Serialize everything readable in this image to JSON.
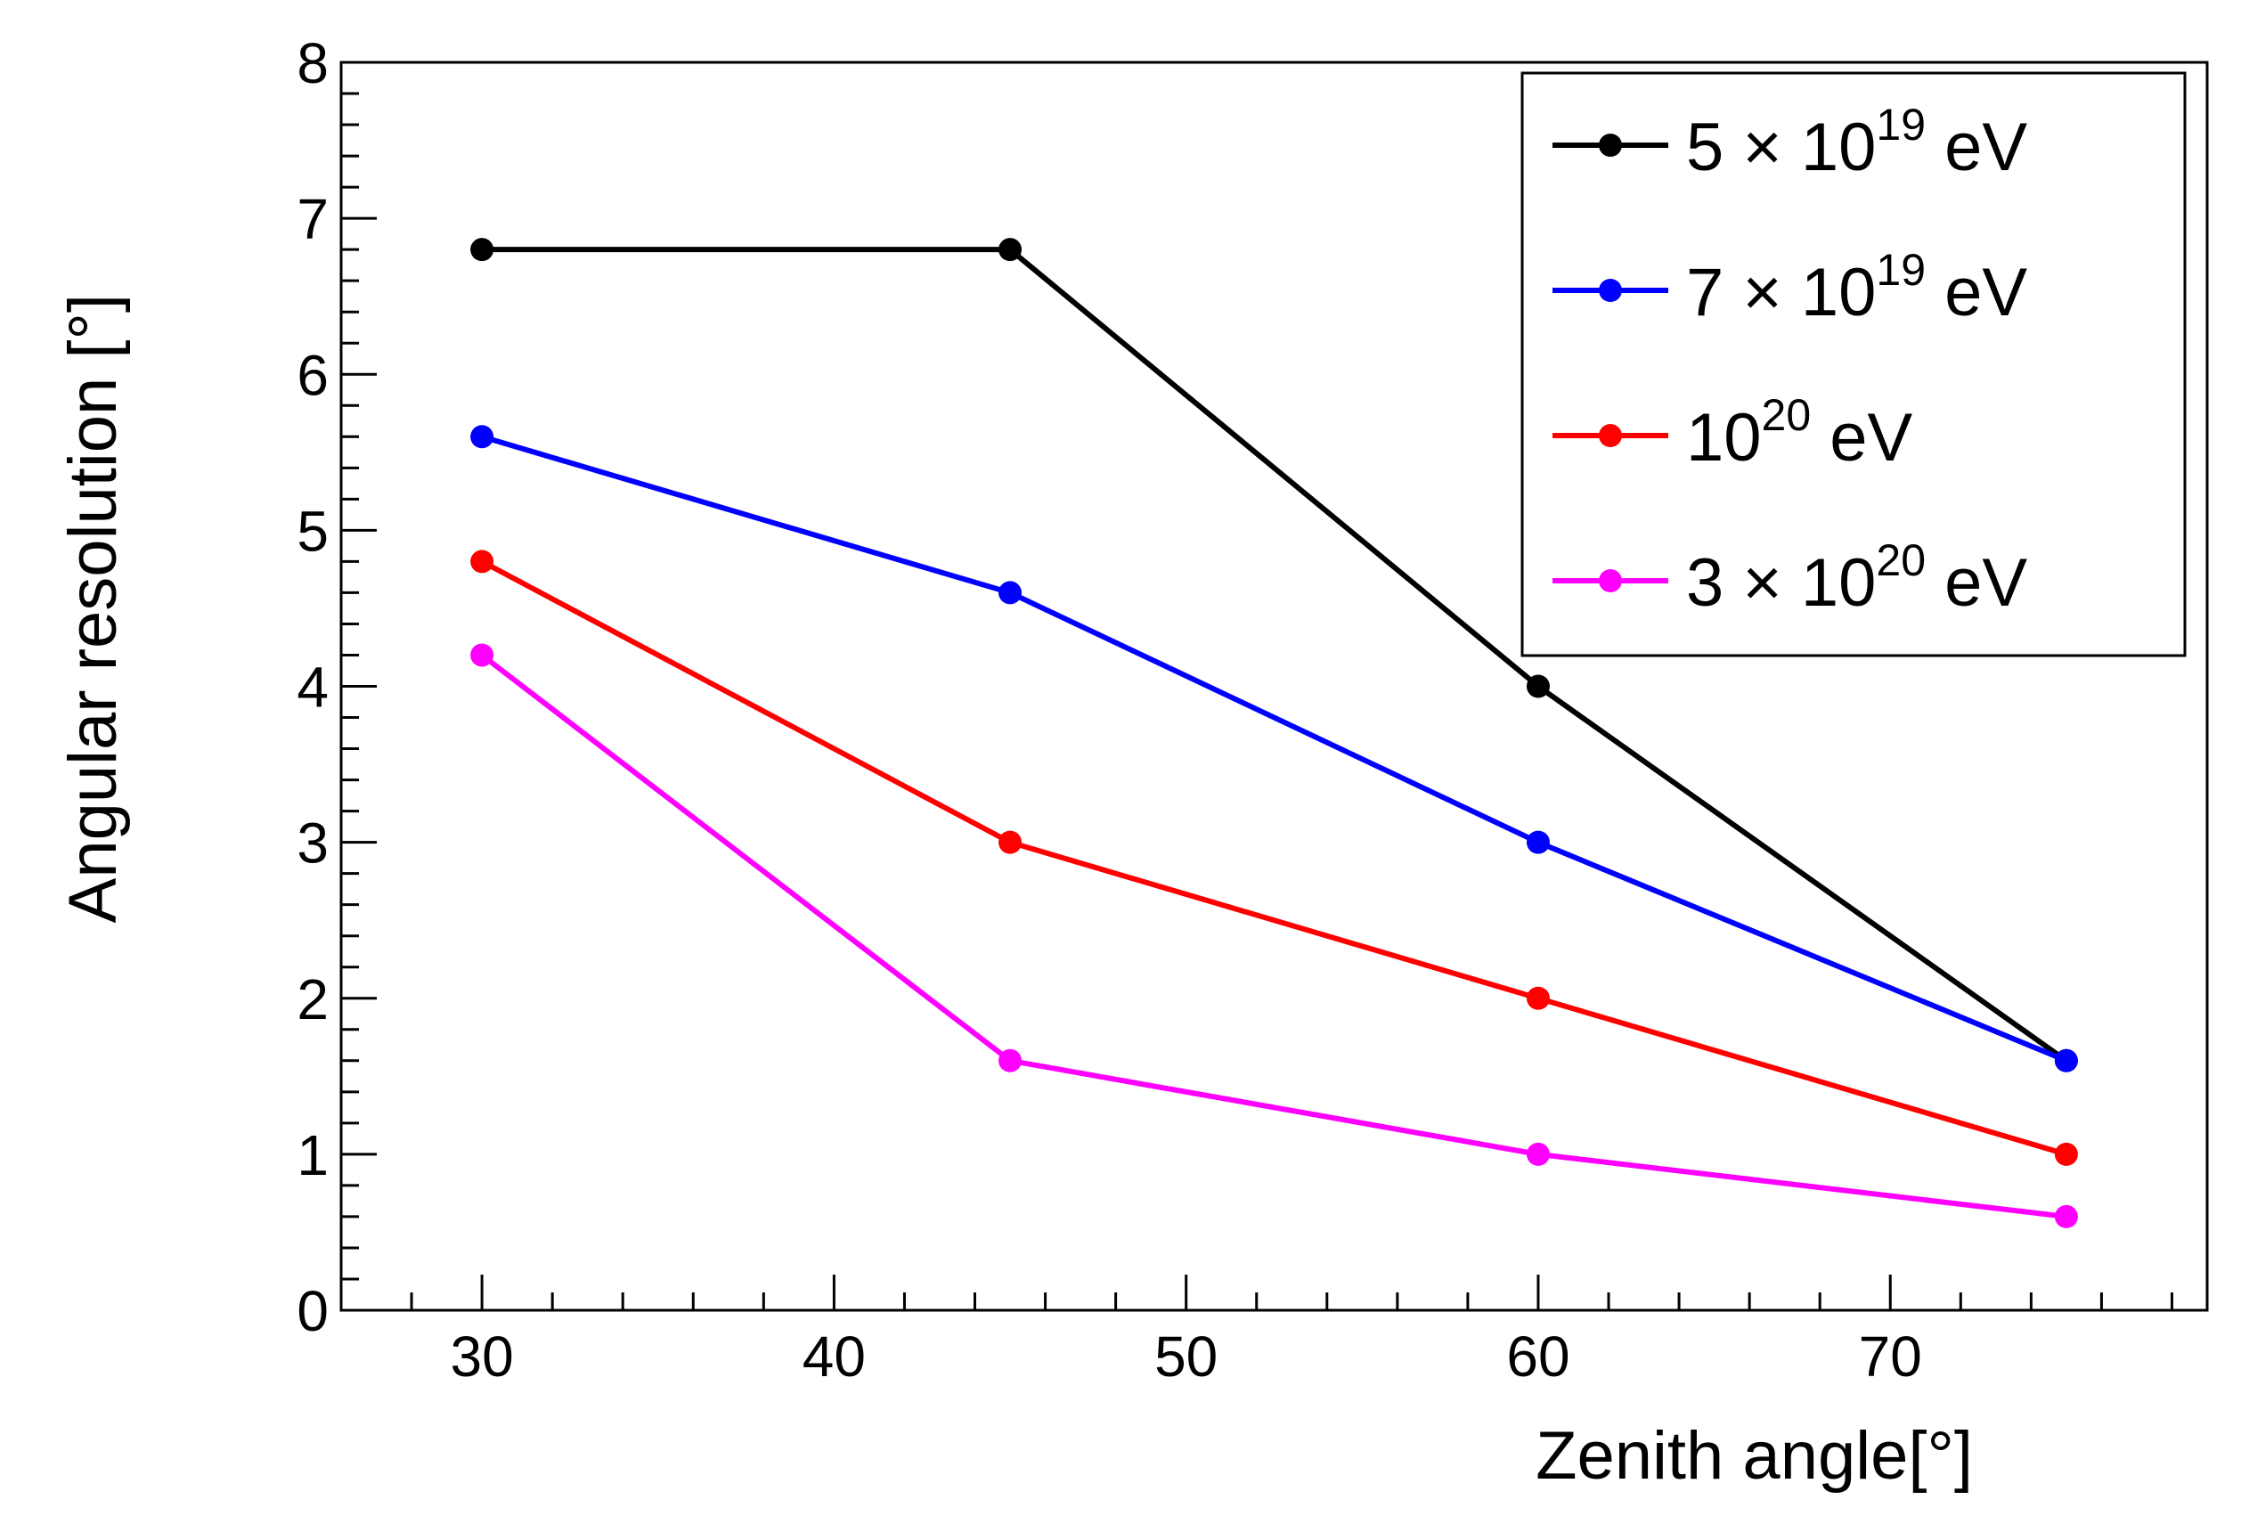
{
  "chart_data": {
    "type": "line",
    "title": "",
    "xlabel": "Zenith angle[°]",
    "ylabel": "Angular resolution [°]",
    "xlim": [
      26,
      79
    ],
    "ylim": [
      0,
      8
    ],
    "x_ticks": [
      30,
      40,
      50,
      60,
      70
    ],
    "x_tick_labels": [
      "30",
      "40",
      "50",
      "60",
      "70"
    ],
    "y_ticks": [
      0,
      1,
      2,
      3,
      4,
      5,
      6,
      7,
      8
    ],
    "y_tick_labels": [
      "0",
      "1",
      "2",
      "3",
      "4",
      "5",
      "6",
      "7",
      "8"
    ],
    "grid": false,
    "legend_position": "top-right",
    "x": [
      30,
      45,
      60,
      75
    ],
    "series": [
      {
        "name": "5 × 10^19 eV",
        "legend": {
          "base": "5 × 10",
          "exponent": "19",
          "unit": "eV"
        },
        "color": "#000000",
        "values": [
          6.8,
          6.8,
          4.0,
          1.6
        ]
      },
      {
        "name": "7 × 10^19 eV",
        "legend": {
          "base": "7 × 10",
          "exponent": "19",
          "unit": "eV"
        },
        "color": "#0000ff",
        "values": [
          5.6,
          4.6,
          3.0,
          1.6
        ]
      },
      {
        "name": "10^20 eV",
        "legend": {
          "base": "10",
          "exponent": "20",
          "unit": "eV"
        },
        "color": "#ff0000",
        "values": [
          4.8,
          3.0,
          2.0,
          1.0
        ]
      },
      {
        "name": "3 × 10^20 eV",
        "legend": {
          "base": "3 × 10",
          "exponent": "20",
          "unit": "eV"
        },
        "color": "#ff00ff",
        "values": [
          4.2,
          1.6,
          1.0,
          0.6
        ]
      }
    ]
  }
}
